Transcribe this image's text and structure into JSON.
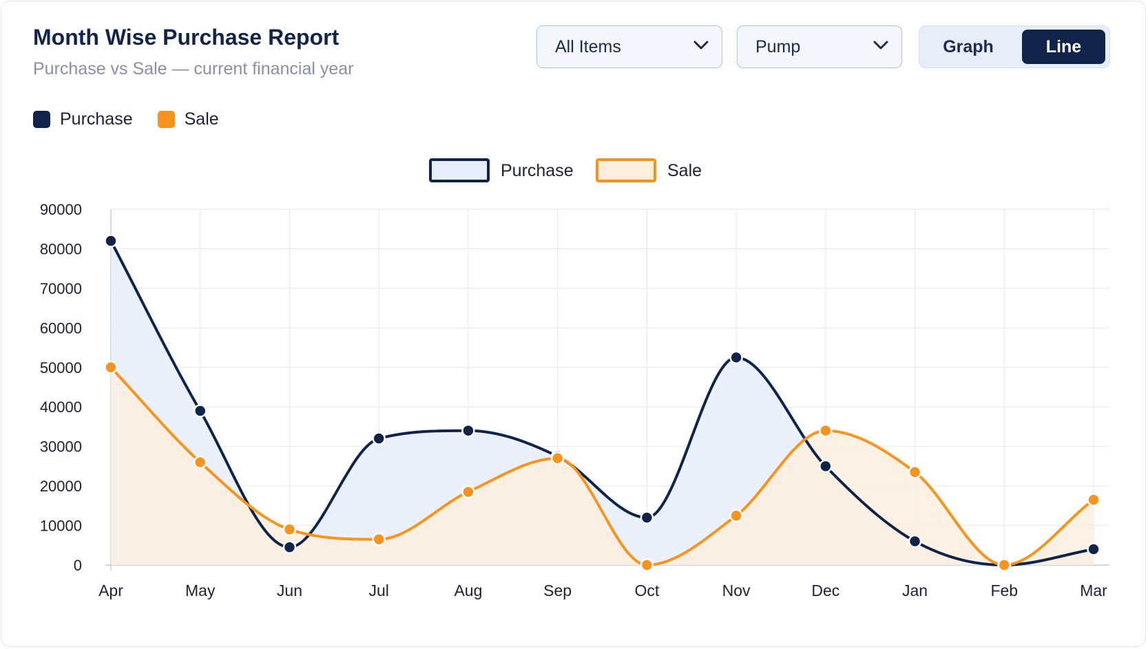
{
  "header": {
    "title": "Month Wise Purchase Report",
    "subtitle": "Purchase vs Sale — current financial year"
  },
  "filters": {
    "item_select": "All Items",
    "category_select": "Pump"
  },
  "view_toggle": {
    "graph_label": "Graph",
    "line_label": "Line",
    "active": "Line"
  },
  "legend": {
    "purchase_label": "Purchase",
    "sale_label": "Sale"
  },
  "colors": {
    "purchase": "#10244b",
    "sale": "#f7941d",
    "purchase_fill": "#e6eefb",
    "sale_fill": "#fdeede"
  },
  "chart_data": {
    "type": "area",
    "categories": [
      "Apr",
      "May",
      "Jun",
      "Jul",
      "Aug",
      "Sep",
      "Oct",
      "Nov",
      "Dec",
      "Jan",
      "Feb",
      "Mar"
    ],
    "series": [
      {
        "name": "Purchase",
        "values": [
          82000,
          39000,
          4500,
          32000,
          34000,
          27500,
          12000,
          52500,
          25000,
          6000,
          0,
          4000
        ]
      },
      {
        "name": "Sale",
        "values": [
          50000,
          26000,
          9000,
          6500,
          18500,
          27000,
          0,
          12500,
          34000,
          23500,
          0,
          16500
        ]
      }
    ],
    "yticks": [
      0,
      10000,
      20000,
      30000,
      40000,
      50000,
      60000,
      70000,
      80000,
      90000
    ],
    "ylim": [
      0,
      90000
    ],
    "grid": true,
    "legend_position": "top-center"
  }
}
